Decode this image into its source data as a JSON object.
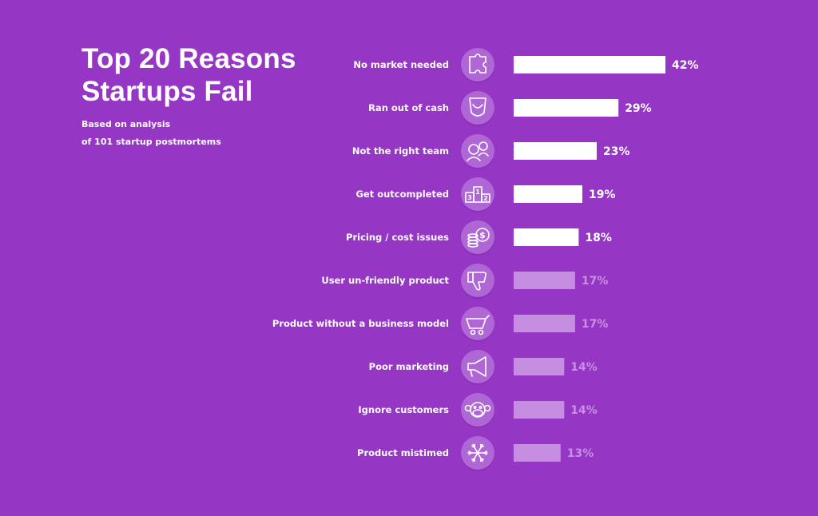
{
  "header": {
    "title_line1": "Top 20 Reasons",
    "title_line2": "Startups Fail",
    "subtitle_line1": "Based on analysis",
    "subtitle_line2": "of 101 startup postmortems"
  },
  "colors": {
    "background": "#9537c4",
    "bar_highlight": "#ffffff",
    "bar_muted": "#c58ee0",
    "icon_fill": "#b067d6",
    "icon_stroke": "#ffffff",
    "label_muted": "#c890e2"
  },
  "chart_data": {
    "type": "bar",
    "orientation": "horizontal",
    "categories": [
      "No market needed",
      "Ran out of cash",
      "Not the right team",
      "Get outcompleted",
      "Pricing / cost issues",
      "User un-friendly product",
      "Product without a business model",
      "Poor marketing",
      "Ignore customers",
      "Product mistimed"
    ],
    "values": [
      42,
      29,
      23,
      19,
      18,
      17,
      17,
      14,
      14,
      13
    ],
    "value_labels": [
      "42%",
      "29%",
      "23%",
      "19%",
      "18%",
      "17%",
      "17%",
      "14%",
      "14%",
      "13%"
    ],
    "highlighted_count": 5,
    "icons": [
      "puzzle-icon",
      "empty-pocket-icon",
      "team-icon",
      "podium-icon",
      "coins-icon",
      "thumbs-down-icon",
      "cart-icon",
      "megaphone-icon",
      "monkey-icon",
      "snowflake-icon"
    ],
    "podium_numbers": [
      "3",
      "1",
      "2"
    ],
    "coin_symbol": "$",
    "title": "Top 20 Reasons Startups Fail",
    "xlabel": "",
    "ylabel": "",
    "xlim": [
      0,
      42
    ],
    "grid": false,
    "legend": "none"
  }
}
